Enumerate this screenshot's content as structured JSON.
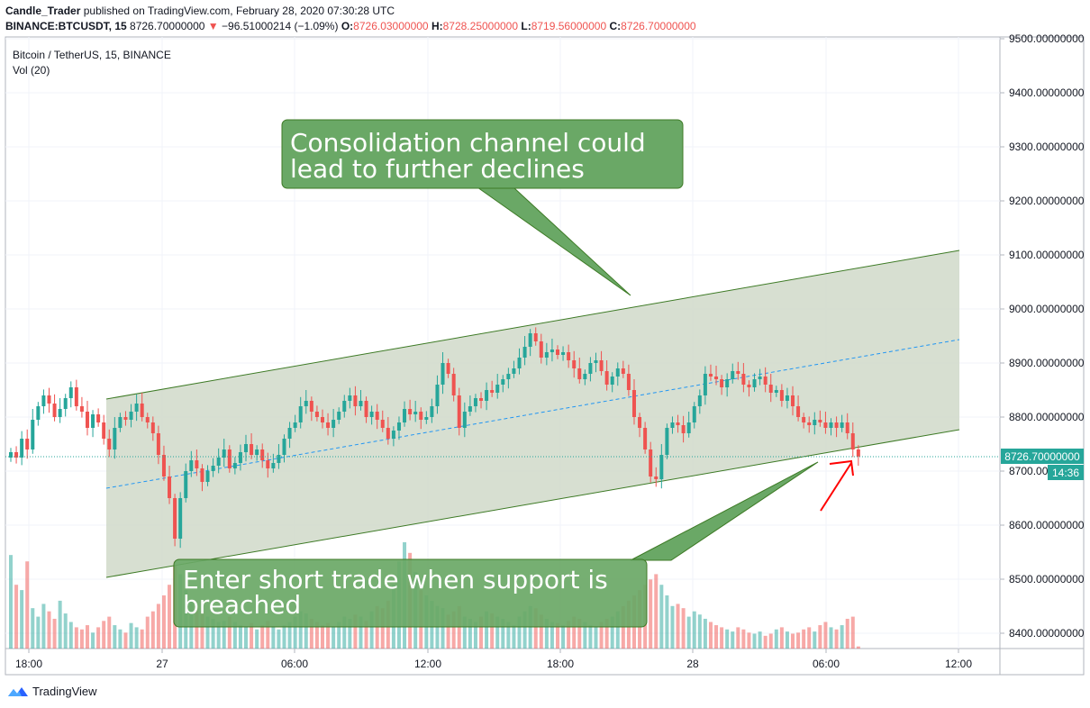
{
  "header": {
    "author": "Candle_Trader",
    "published_text": "published on TradingView.com, February 28, 2020 07:30:28 UTC",
    "symbol": "BINANCE:BTCUSDT, 15",
    "last": "8726.70000000",
    "change": "−96.51000214 (−1.09%)",
    "o_label": "O:",
    "o_value": "8726.03000000",
    "h_label": "H:",
    "h_value": "8728.25000000",
    "l_label": "L:",
    "l_value": "8719.56000000",
    "c_label": "C:",
    "c_value": "8726.70000000"
  },
  "legend": {
    "pair": "Bitcoin / TetherUS, 15, BINANCE",
    "vol": "Vol (20)"
  },
  "annotations": {
    "top_callout": [
      "Consolidation channel could",
      "lead to further declines"
    ],
    "bottom_callout": [
      "Enter short trade when support is",
      "breached"
    ]
  },
  "footer": {
    "brand": "TradingView"
  },
  "colors": {
    "up": "#26a69a",
    "down": "#ef5350",
    "channel_fill": "#d3dccc",
    "channel_line": "#3d7a25",
    "callout": "#6aa866",
    "midline": "#2196f3",
    "arrow": "#ff0000"
  },
  "chart_data": {
    "type": "candlestick",
    "title": "Bitcoin / TetherUS, 15, BINANCE",
    "y_axis": {
      "min": 8370,
      "max": 9510,
      "ticks": [
        "8400.00000000",
        "8500.00000000",
        "8600.00000000",
        "8700.00000000",
        "8800.00000000",
        "8900.00000000",
        "9000.00000000",
        "9100.00000000",
        "9200.00000000",
        "9300.00000000",
        "9400.00000000",
        "9500.00000000"
      ],
      "tick_values": [
        8400,
        8500,
        8600,
        8700,
        8800,
        8900,
        9000,
        9100,
        9200,
        9300,
        9400,
        9500
      ]
    },
    "x_axis": {
      "ticks": [
        "18:00",
        "27",
        "06:00",
        "12:00",
        "18:00",
        "28",
        "06:00",
        "12:00"
      ]
    },
    "last_price_label": "8726.70000000",
    "countdown_label": "14:36",
    "last_price": 8726.7,
    "close": [
      8735,
      8725,
      8760,
      8740,
      8795,
      8820,
      8840,
      8825,
      8800,
      8815,
      8835,
      8855,
      8820,
      8810,
      8780,
      8805,
      8790,
      8760,
      8740,
      8780,
      8800,
      8795,
      8810,
      8825,
      8800,
      8790,
      8770,
      8730,
      8690,
      8650,
      8575,
      8650,
      8700,
      8720,
      8705,
      8680,
      8700,
      8710,
      8725,
      8740,
      8705,
      8715,
      8735,
      8750,
      8730,
      8740,
      8720,
      8705,
      8715,
      8730,
      8760,
      8780,
      8790,
      8820,
      8830,
      8810,
      8800,
      8790,
      8780,
      8795,
      8810,
      8830,
      8840,
      8820,
      8830,
      8800,
      8810,
      8795,
      8780,
      8760,
      8775,
      8790,
      8815,
      8805,
      8810,
      8795,
      8800,
      8820,
      8860,
      8900,
      8880,
      8840,
      8780,
      8810,
      8820,
      8835,
      8830,
      8850,
      8845,
      8860,
      8870,
      8880,
      8890,
      8910,
      8930,
      8955,
      8940,
      8910,
      8920,
      8925,
      8915,
      8920,
      8905,
      8890,
      8870,
      8880,
      8900,
      8905,
      8885,
      8860,
      8875,
      8890,
      8880,
      8850,
      8800,
      8780,
      8740,
      8690,
      8685,
      8730,
      8780,
      8790,
      8785,
      8770,
      8790,
      8820,
      8840,
      8880,
      8875,
      8870,
      8855,
      8870,
      8885,
      8880,
      8860,
      8855,
      8870,
      8875,
      8860,
      8845,
      8850,
      8830,
      8840,
      8820,
      8800,
      8790,
      8785,
      8795,
      8790,
      8780,
      8790,
      8780,
      8790,
      8770,
      8740,
      8727
    ],
    "volume": [
      0.88,
      0.6,
      0.55,
      0.82,
      0.38,
      0.3,
      0.42,
      0.35,
      0.28,
      0.45,
      0.33,
      0.25,
      0.2,
      0.18,
      0.22,
      0.15,
      0.2,
      0.26,
      0.3,
      0.22,
      0.18,
      0.15,
      0.24,
      0.2,
      0.18,
      0.3,
      0.35,
      0.42,
      0.5,
      0.6,
      0.82,
      0.7,
      0.55,
      0.45,
      0.4,
      0.35,
      0.3,
      0.28,
      0.25,
      0.26,
      0.3,
      0.25,
      0.22,
      0.2,
      0.24,
      0.18,
      0.22,
      0.26,
      0.2,
      0.18,
      0.22,
      0.25,
      0.3,
      0.35,
      0.33,
      0.28,
      0.25,
      0.22,
      0.24,
      0.2,
      0.25,
      0.3,
      0.28,
      0.32,
      0.3,
      0.26,
      0.35,
      0.4,
      0.38,
      0.45,
      0.6,
      0.82,
      1.0,
      0.9,
      0.72,
      0.55,
      0.5,
      0.45,
      0.4,
      0.38,
      0.32,
      0.35,
      0.4,
      0.3,
      0.28,
      0.25,
      0.3,
      0.35,
      0.33,
      0.3,
      0.28,
      0.25,
      0.22,
      0.3,
      0.35,
      0.4,
      0.38,
      0.32,
      0.28,
      0.25,
      0.24,
      0.22,
      0.26,
      0.3,
      0.28,
      0.25,
      0.22,
      0.2,
      0.25,
      0.28,
      0.3,
      0.35,
      0.4,
      0.45,
      0.5,
      0.55,
      0.6,
      0.65,
      0.7,
      0.6,
      0.5,
      0.4,
      0.42,
      0.38,
      0.3,
      0.35,
      0.32,
      0.28,
      0.25,
      0.22,
      0.2,
      0.18,
      0.16,
      0.2,
      0.18,
      0.15,
      0.14,
      0.16,
      0.12,
      0.14,
      0.18,
      0.2,
      0.16,
      0.14,
      0.15,
      0.18,
      0.2,
      0.16,
      0.22,
      0.25,
      0.2,
      0.18,
      0.22,
      0.28,
      0.3,
      0.02
    ]
  }
}
